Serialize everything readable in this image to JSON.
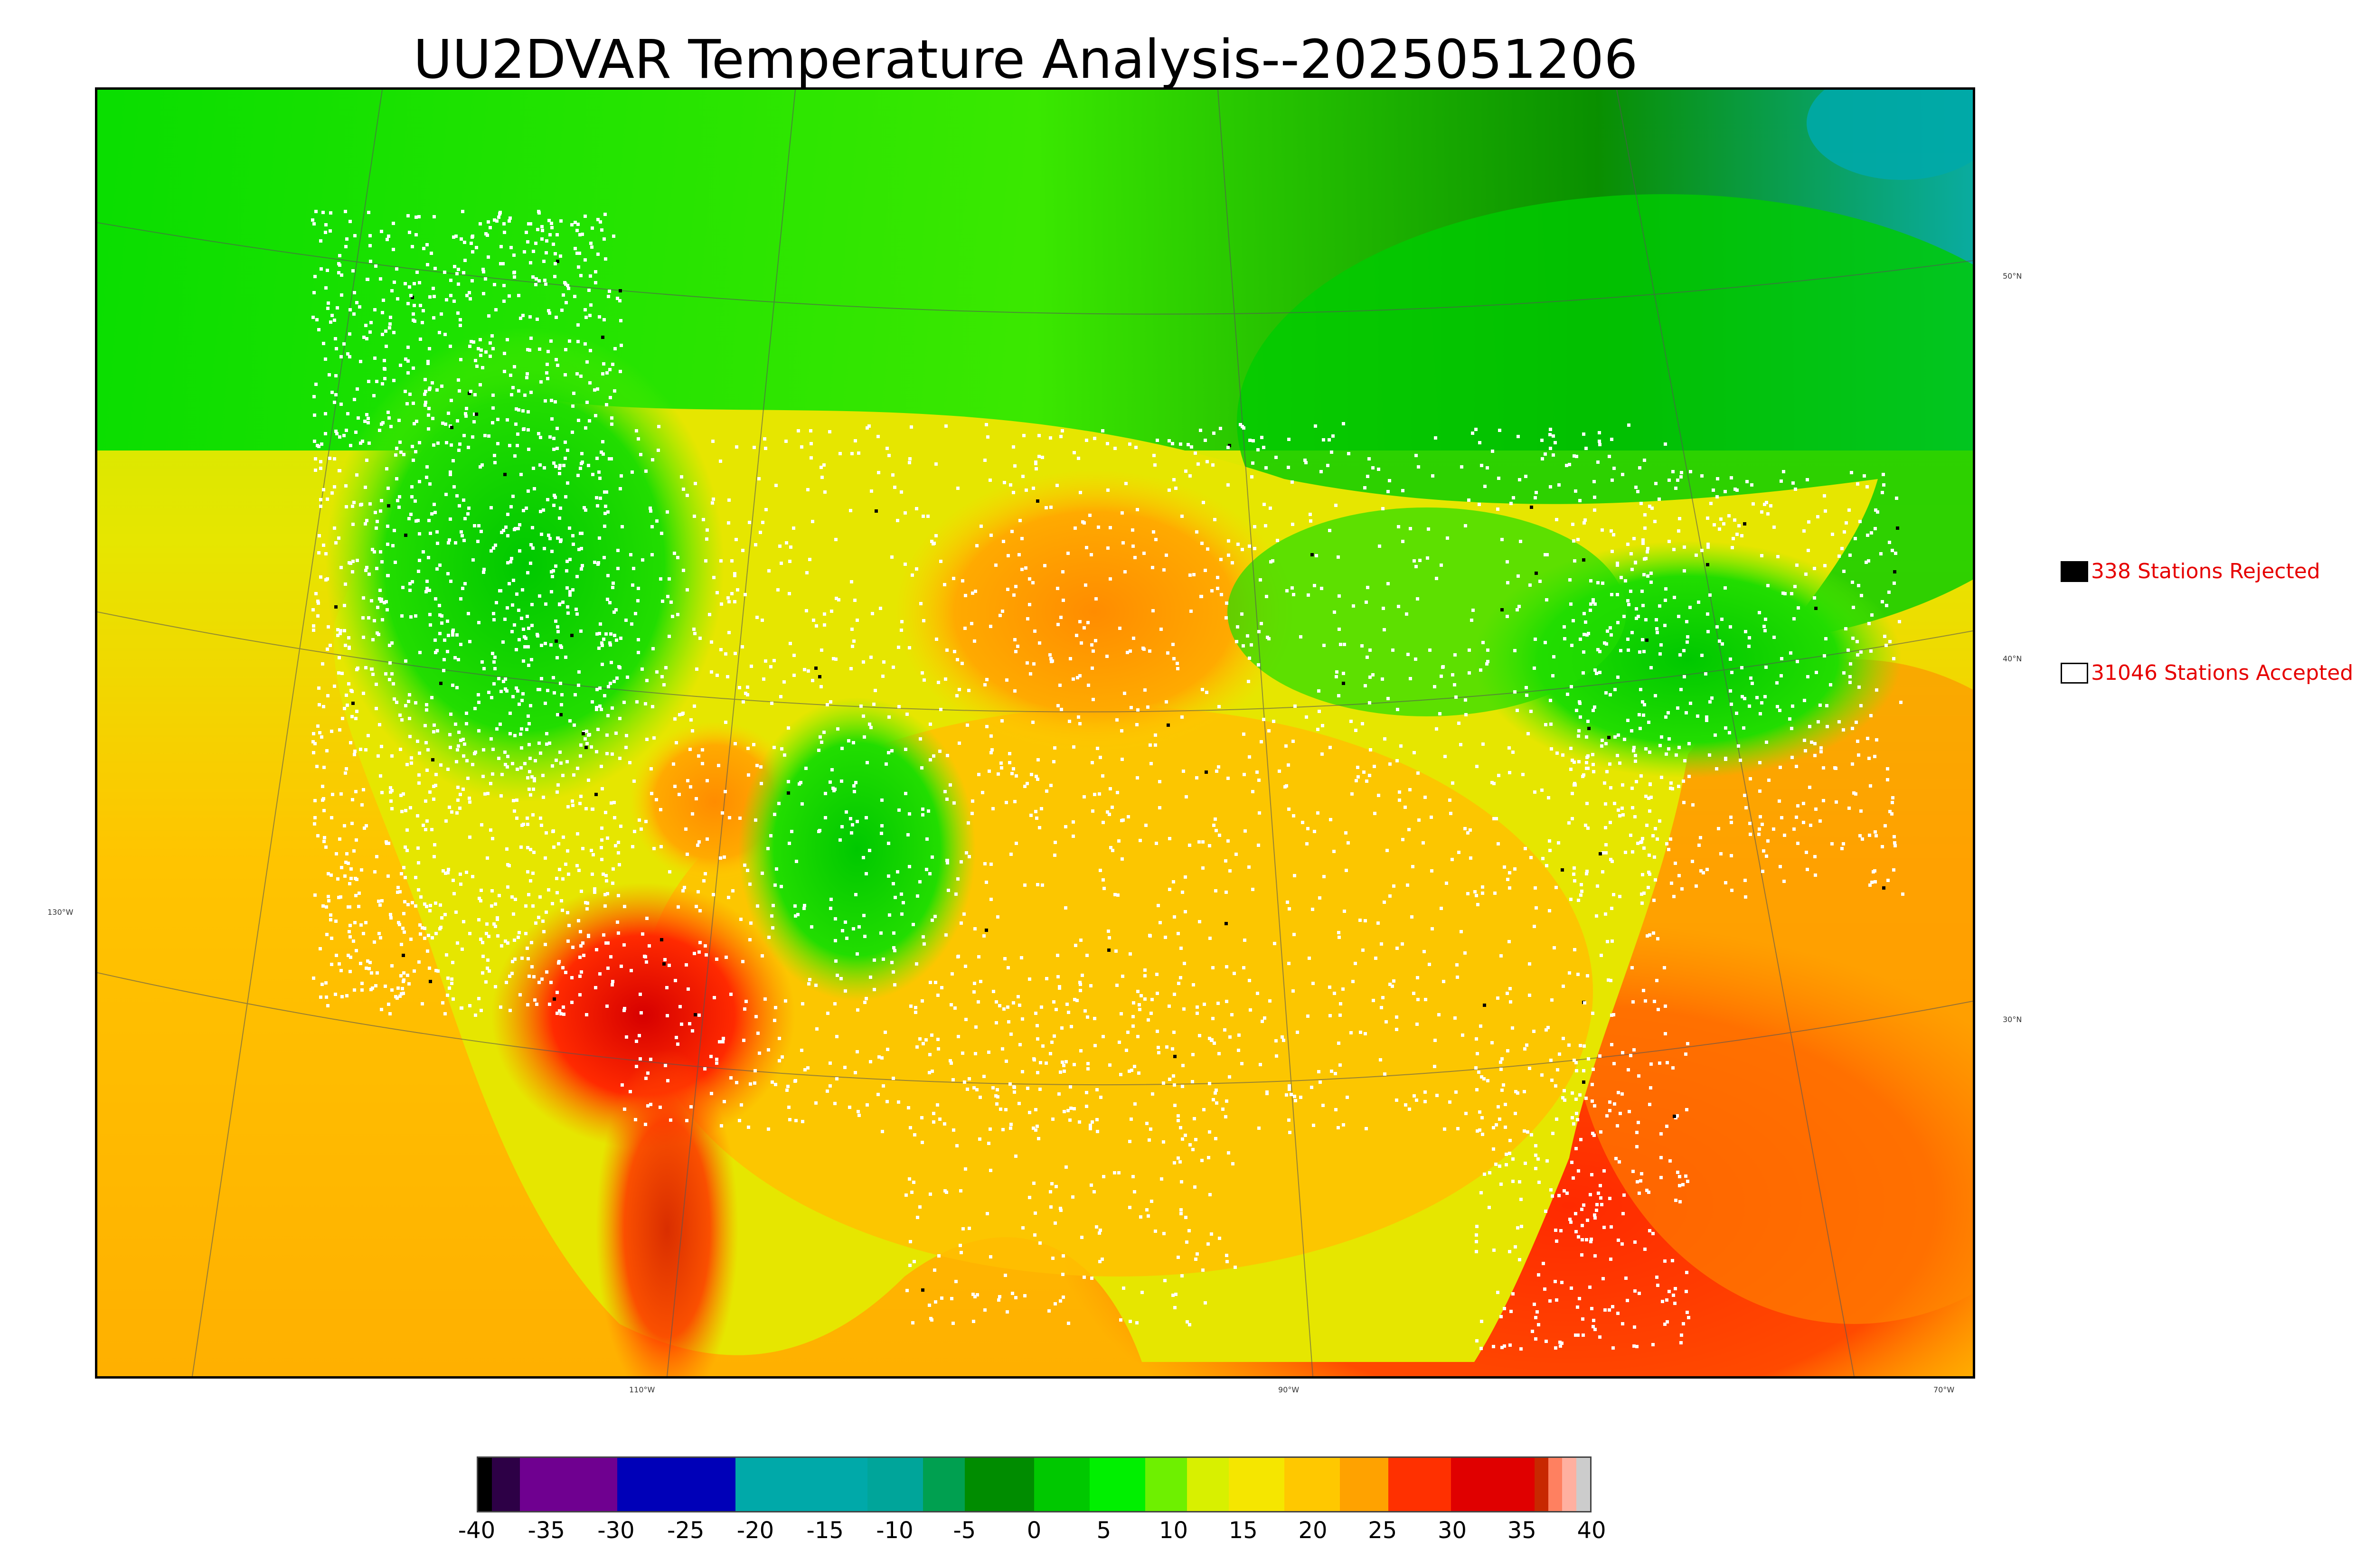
{
  "title": "UU2DVAR Temperature Analysis--2025051206",
  "legend": {
    "rejected": {
      "label": "338 Stations Rejected",
      "swatch_color": "#000000"
    },
    "accepted": {
      "label": "31046 Stations Accepted",
      "swatch_color": "#ffffff"
    }
  },
  "map": {
    "lat_labels": [
      "50°N",
      "40°N",
      "30°N"
    ],
    "lon_labels": [
      "130°W",
      "110°W",
      "90°W",
      "70°W"
    ],
    "colors": {
      "cold_green": "#008a00",
      "green": "#00dd00",
      "lime": "#99ee00",
      "yellow": "#e6e600",
      "orange": "#ffaa00",
      "red": "#ff2a00",
      "dark_red": "#d60000",
      "teal": "#00a8a8",
      "station": "#ffffff",
      "rejected_station": "#000000"
    }
  },
  "colorbar": {
    "range": [
      -40,
      40
    ],
    "ticks": [
      "-40",
      "-35",
      "-30",
      "-25",
      "-20",
      "-15",
      "-10",
      "-5",
      "0",
      "5",
      "10",
      "15",
      "20",
      "25",
      "30",
      "35",
      "40"
    ],
    "stops": [
      {
        "from": -40,
        "to": -39,
        "color": "#000000"
      },
      {
        "from": -39,
        "to": -37,
        "color": "#2d0046"
      },
      {
        "from": -37,
        "to": -30,
        "color": "#6f0090"
      },
      {
        "from": -30,
        "to": -21.5,
        "color": "#0000b8"
      },
      {
        "from": -21.5,
        "to": -12,
        "color": "#00a9a9"
      },
      {
        "from": -12,
        "to": -8,
        "color": "#00a59a"
      },
      {
        "from": -8,
        "to": -5,
        "color": "#00a050"
      },
      {
        "from": -5,
        "to": 0,
        "color": "#008c00"
      },
      {
        "from": 0,
        "to": 4,
        "color": "#00c800"
      },
      {
        "from": 4,
        "to": 8,
        "color": "#00f000"
      },
      {
        "from": 8,
        "to": 11,
        "color": "#6ef000"
      },
      {
        "from": 11,
        "to": 14,
        "color": "#d8f000"
      },
      {
        "from": 14,
        "to": 18,
        "color": "#f5e600"
      },
      {
        "from": 18,
        "to": 22,
        "color": "#ffc800"
      },
      {
        "from": 22,
        "to": 25.5,
        "color": "#ffa200"
      },
      {
        "from": 25.5,
        "to": 30,
        "color": "#ff3000"
      },
      {
        "from": 30,
        "to": 36,
        "color": "#e00000"
      },
      {
        "from": 36,
        "to": 37,
        "color": "#c82800"
      },
      {
        "from": 37,
        "to": 38,
        "color": "#ff8060"
      },
      {
        "from": 38,
        "to": 39,
        "color": "#ffb0a0"
      },
      {
        "from": 39,
        "to": 40,
        "color": "#cccccc"
      }
    ]
  }
}
